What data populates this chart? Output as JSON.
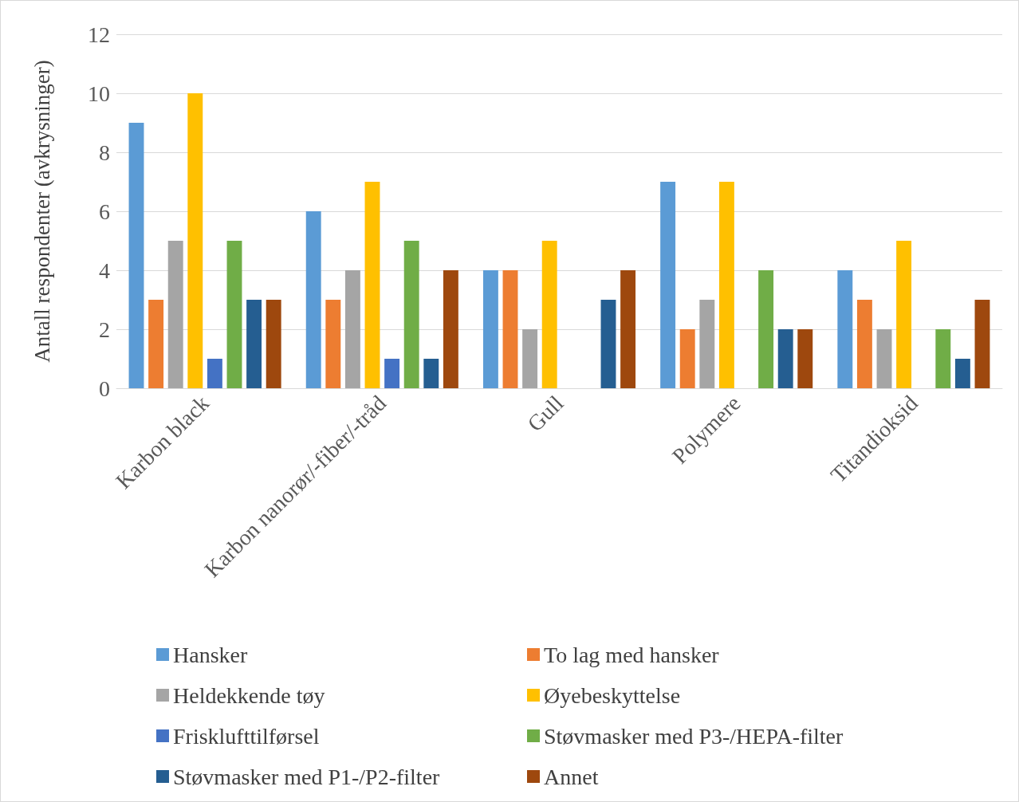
{
  "chart_data": {
    "type": "bar",
    "ylabel": "Antall respondenter (avkrysninger)",
    "categories": [
      "Karbon black",
      "Karbon nanorør/-fiber/-tråd",
      "Gull",
      "Polymere",
      "Titandioksid"
    ],
    "series": [
      {
        "name": "Hansker",
        "color": "#5b9bd5",
        "values": [
          9,
          6,
          4,
          7,
          4
        ]
      },
      {
        "name": "To lag med hansker",
        "color": "#ed7d31",
        "values": [
          3,
          3,
          4,
          2,
          3
        ]
      },
      {
        "name": "Heldekkende tøy",
        "color": "#a5a5a5",
        "values": [
          5,
          4,
          2,
          3,
          2
        ]
      },
      {
        "name": "Øyebeskyttelse",
        "color": "#ffc000",
        "values": [
          10,
          7,
          5,
          7,
          5
        ]
      },
      {
        "name": "Frisklufttilførsel",
        "color": "#4472c4",
        "values": [
          1,
          1,
          0,
          0,
          0
        ]
      },
      {
        "name": "Støvmasker med P3-/HEPA-filter",
        "color": "#70ad47",
        "values": [
          5,
          5,
          0,
          4,
          2
        ]
      },
      {
        "name": "Støvmasker med P1-/P2-filter",
        "color": "#255e91",
        "values": [
          3,
          1,
          3,
          2,
          1
        ]
      },
      {
        "name": "Annet",
        "color": "#9e480e",
        "values": [
          3,
          4,
          4,
          2,
          3
        ]
      }
    ],
    "ylim": [
      0,
      12
    ],
    "yticks": [
      0,
      2,
      4,
      6,
      8,
      10,
      12
    ],
    "grid": "y",
    "legend": "bottom"
  }
}
